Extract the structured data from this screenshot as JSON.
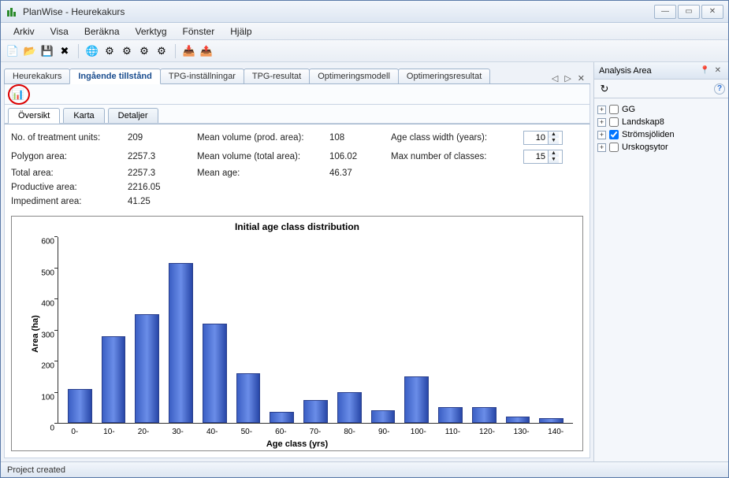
{
  "window": {
    "title": "PlanWise - Heurekakurs"
  },
  "menubar": [
    "Arkiv",
    "Visa",
    "Beräkna",
    "Verktyg",
    "Fönster",
    "Hjälp"
  ],
  "doc_tabs": {
    "items": [
      "Heurekakurs",
      "Ingående tillstånd",
      "TPG-inställningar",
      "TPG-resultat",
      "Optimeringsmodell",
      "Optimeringsresultat"
    ],
    "active_index": 1
  },
  "inner_tabs": {
    "items": [
      "Översikt",
      "Karta",
      "Detaljer"
    ],
    "active_index": 0
  },
  "stats": {
    "left": [
      {
        "label": "No. of treatment units",
        "value": "209"
      },
      {
        "label": "Polygon area",
        "value": "2257.3"
      },
      {
        "label": "Total area",
        "value": "2257.3"
      },
      {
        "label": "Productive area",
        "value": "2216.05"
      },
      {
        "label": "Impediment area",
        "value": "41.25"
      }
    ],
    "mid": [
      {
        "label": "Mean volume (prod. area)",
        "value": "108"
      },
      {
        "label": "Mean volume (total area)",
        "value": "106.02"
      },
      {
        "label": "Mean age",
        "value": "46.37"
      }
    ],
    "right": [
      {
        "label": "Age class width (years)",
        "value": "10"
      },
      {
        "label": "Max number of classes",
        "value": "15"
      }
    ]
  },
  "chart": {
    "type": "bar",
    "title": "Initial age class distribution",
    "xlabel": "Age class (yrs)",
    "ylabel": "Area (ha)",
    "ylim": [
      0,
      600
    ],
    "ytick_step": 100,
    "categories": [
      "0-",
      "10-",
      "20-",
      "30-",
      "40-",
      "50-",
      "60-",
      "70-",
      "80-",
      "90-",
      "100-",
      "110-",
      "120-",
      "130-",
      "140-"
    ],
    "values": [
      110,
      280,
      350,
      515,
      320,
      160,
      35,
      75,
      100,
      40,
      150,
      50,
      50,
      20,
      15
    ],
    "bar_gradient": [
      "#3b5fc4",
      "#6a8de8",
      "#2847a8"
    ],
    "bar_border": "#2a3f8c",
    "axis_color": "#333333",
    "background": "#ffffff",
    "title_fontsize": 12,
    "label_fontsize": 11,
    "tick_fontsize": 10
  },
  "analysis_panel": {
    "title": "Analysis Area",
    "items": [
      {
        "label": "GG",
        "checked": false
      },
      {
        "label": "Landskap8",
        "checked": false
      },
      {
        "label": "Strömsjöliden",
        "checked": true
      },
      {
        "label": "Urskogsytor",
        "checked": false
      }
    ]
  },
  "statusbar": {
    "text": "Project created"
  },
  "icons": {
    "app": "⬚",
    "refresh": "↻",
    "help": "?",
    "pin": "📌",
    "close": "×",
    "min": "—",
    "max": "▭"
  }
}
